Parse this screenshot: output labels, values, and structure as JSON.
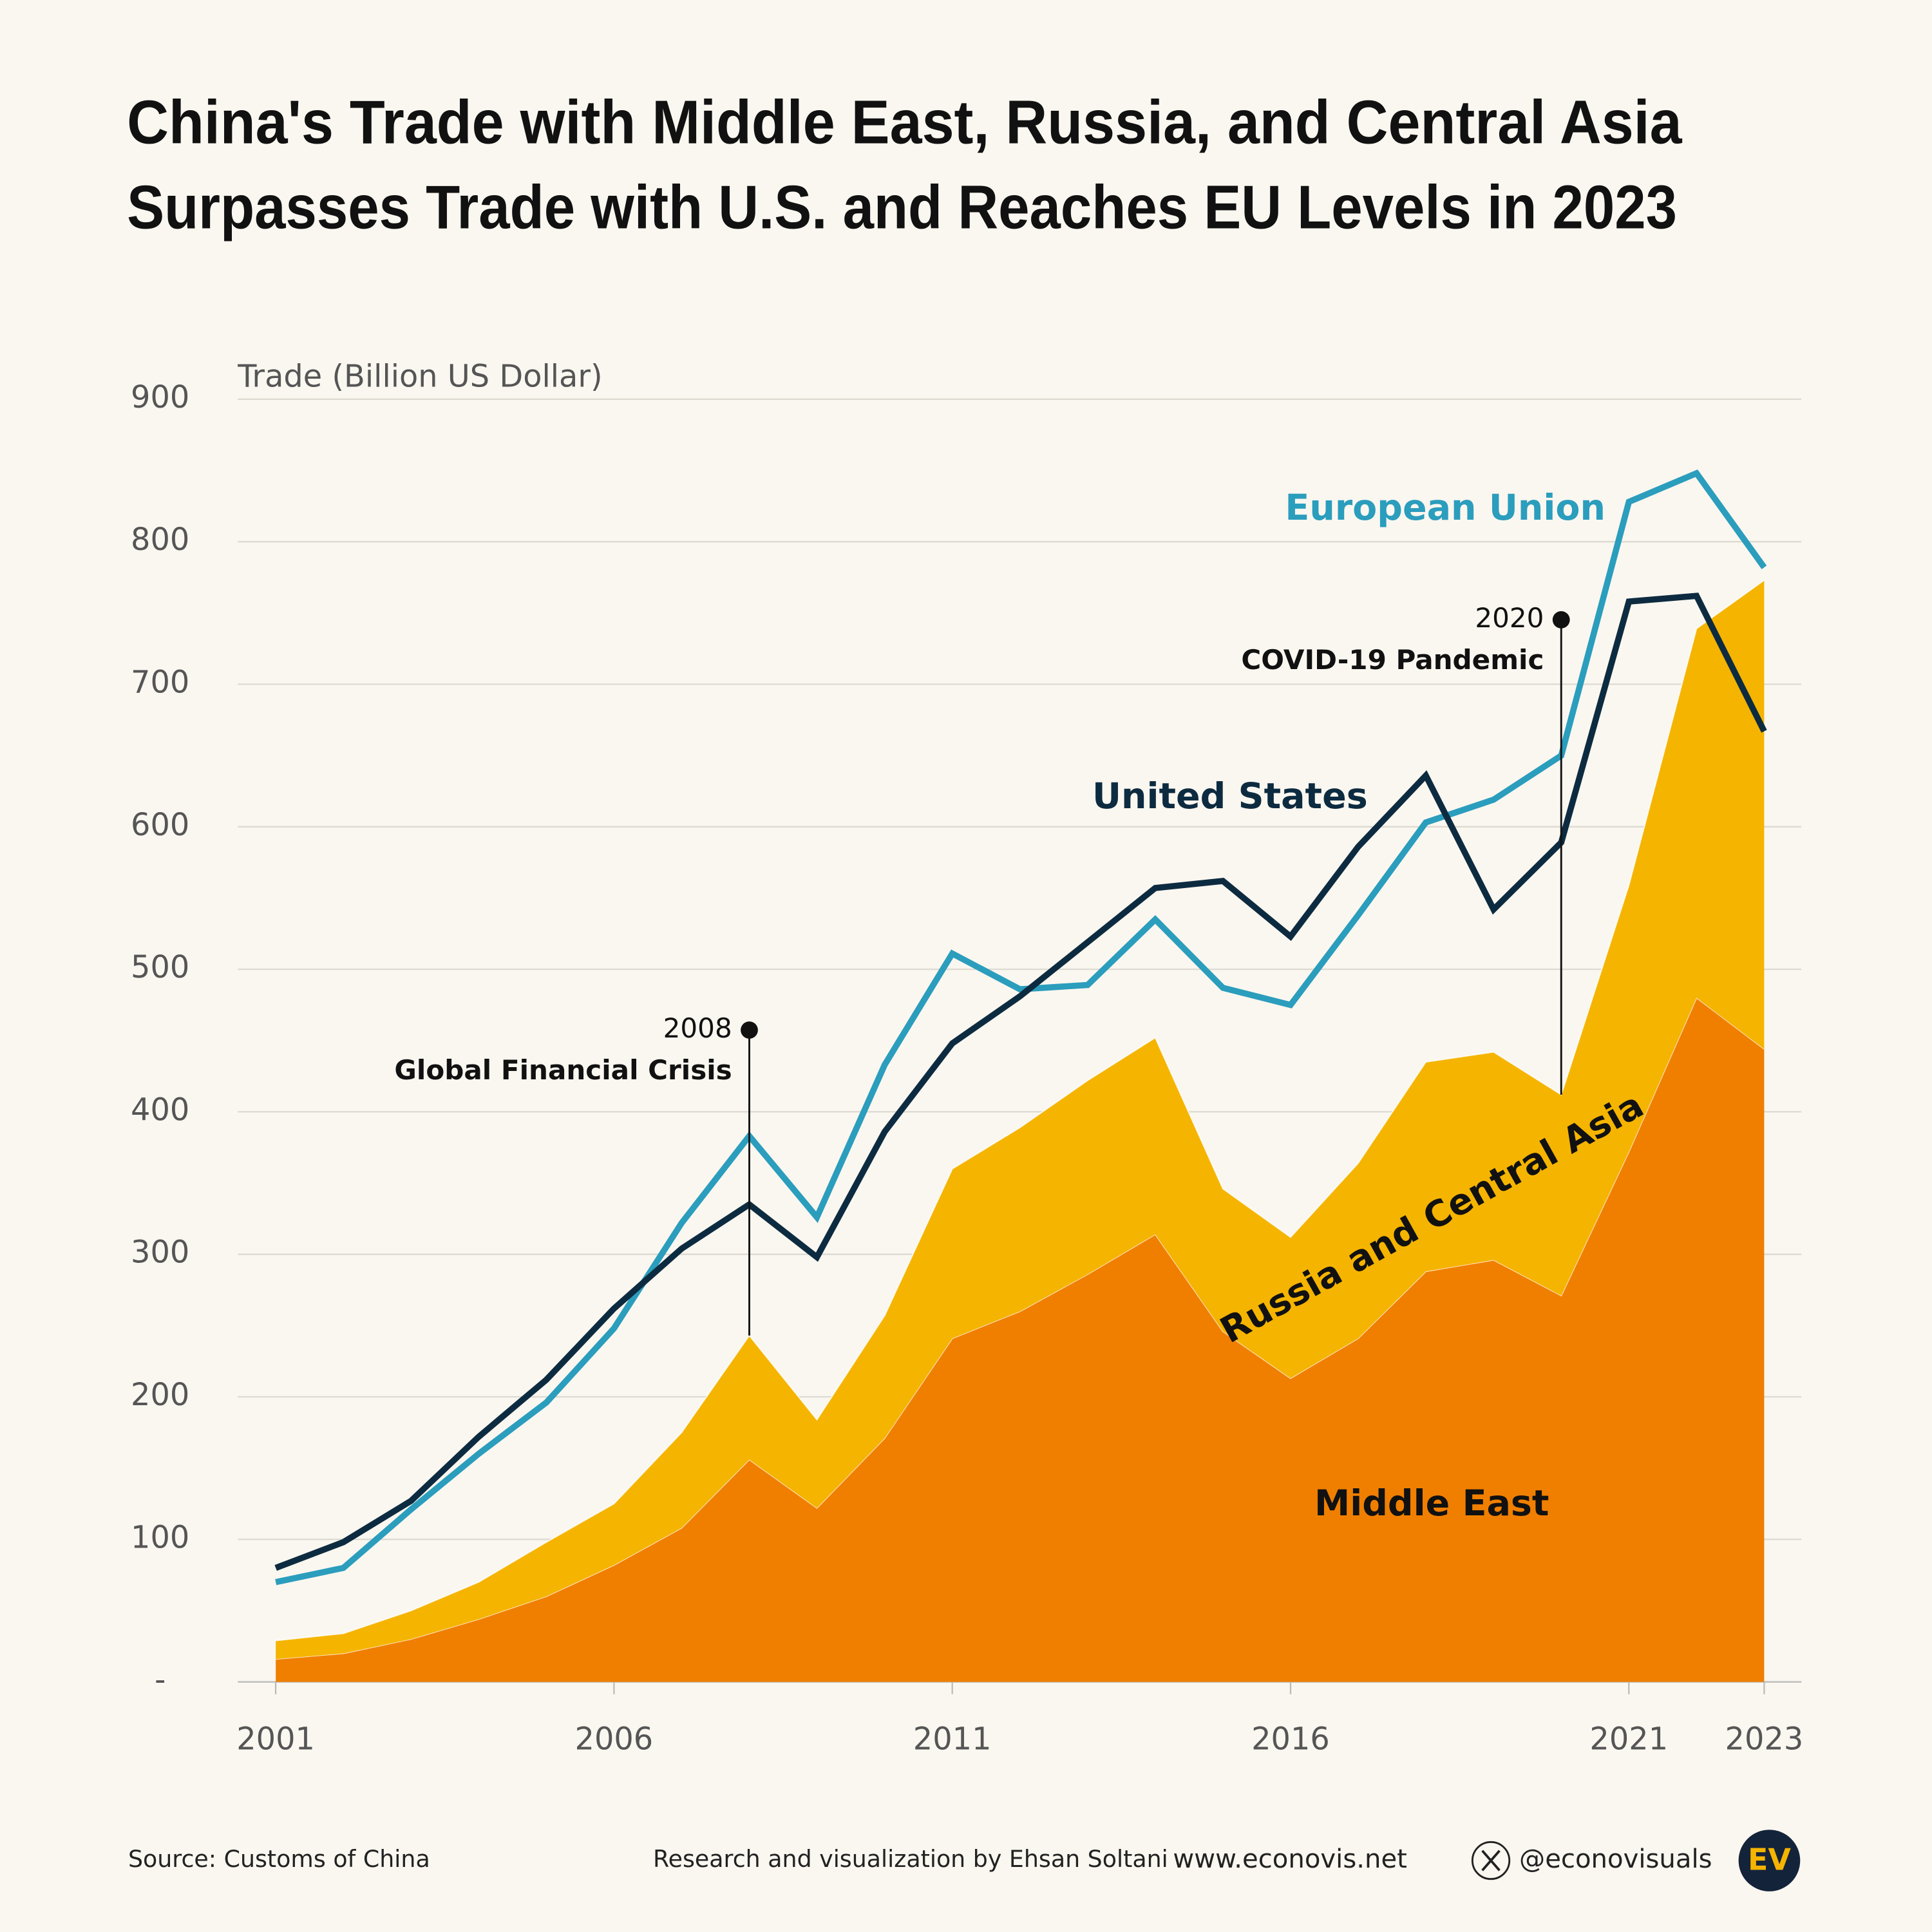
{
  "chart_data": {
    "type": "area",
    "title": [
      "China's Trade with Middle East, Russia, and Central Asia",
      "Surpasses Trade with U.S. and Reaches EU Levels in 2023"
    ],
    "y_label": "Trade (Billion US Dollar)",
    "x": [
      2001,
      2002,
      2003,
      2004,
      2005,
      2006,
      2007,
      2008,
      2009,
      2010,
      2011,
      2012,
      2013,
      2014,
      2015,
      2016,
      2017,
      2018,
      2019,
      2020,
      2021,
      2022,
      2023
    ],
    "stacked": true,
    "series": [
      {
        "name": "Middle East",
        "type": "area",
        "color": "#f07f00",
        "values": [
          16,
          20,
          30,
          44,
          60,
          82,
          108,
          156,
          122,
          171,
          241,
          260,
          286,
          314,
          246,
          213,
          241,
          288,
          296,
          271,
          372,
          480,
          444
        ]
      },
      {
        "name": "Russia and Central Asia",
        "type": "area",
        "color": "#f5b400",
        "values": [
          13,
          14,
          20,
          26,
          38,
          43,
          67,
          87,
          62,
          86,
          119,
          129,
          136,
          138,
          100,
          99,
          123,
          147,
          146,
          141,
          187,
          259,
          329
        ]
      },
      {
        "name": "European Union",
        "type": "line",
        "color": "#2b9dbd",
        "values": [
          70,
          80,
          121,
          160,
          196,
          248,
          322,
          383,
          326,
          433,
          511,
          486,
          489,
          535,
          487,
          475,
          538,
          603,
          619,
          650,
          828,
          848,
          782
        ]
      },
      {
        "name": "United States",
        "type": "line",
        "color": "#0d2b40",
        "values": [
          80,
          98,
          127,
          172,
          212,
          262,
          304,
          335,
          298,
          386,
          448,
          481,
          519,
          557,
          562,
          523,
          586,
          636,
          542,
          589,
          758,
          762,
          667
        ]
      }
    ],
    "xlim": [
      2000.44,
      2023.55
    ],
    "ylim": [
      0,
      900
    ],
    "xticks": [
      2001,
      2006,
      2011,
      2016,
      2021,
      2023
    ],
    "yticks": [
      {
        "value": 0,
        "label": "-"
      },
      100,
      200,
      300,
      400,
      500,
      600,
      700,
      800,
      900
    ],
    "grid": true,
    "annotations": [
      {
        "x": 2008,
        "text": "Global Financial Crisis"
      },
      {
        "x": 2020,
        "text": "COVID-19 Pandemic"
      }
    ]
  },
  "footer": {
    "source": "Source: Customs of China",
    "credit": "Research and visualization by Ehsan Soltani",
    "website": "www.econovis.net",
    "handle": "@econovisuals",
    "logo": "EV"
  }
}
